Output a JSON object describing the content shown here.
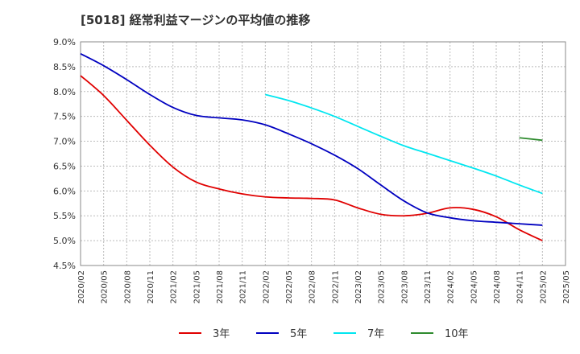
{
  "chart_data": {
    "type": "line",
    "title": "[5018]  経常利益マージンの平均値の推移",
    "xlabel": "",
    "ylabel": "",
    "ylim": [
      4.5,
      9.0
    ],
    "y_ticks": [
      "4.5%",
      "5.0%",
      "5.5%",
      "6.0%",
      "6.5%",
      "7.0%",
      "7.5%",
      "8.0%",
      "8.5%",
      "9.0%"
    ],
    "x_ticks": [
      "2020/02",
      "2020/05",
      "2020/08",
      "2020/11",
      "2021/02",
      "2021/05",
      "2021/08",
      "2021/11",
      "2022/02",
      "2022/05",
      "2022/08",
      "2022/11",
      "2023/02",
      "2023/05",
      "2023/08",
      "2023/11",
      "2024/02",
      "2024/05",
      "2024/08",
      "2024/11",
      "2025/02",
      "2025/05"
    ],
    "grid": true,
    "legend_position": "bottom",
    "series": [
      {
        "name": "3年",
        "color": "#e00000",
        "x": [
          "2020/02",
          "2020/05",
          "2020/08",
          "2020/11",
          "2021/02",
          "2021/05",
          "2021/08",
          "2021/11",
          "2022/02",
          "2022/05",
          "2022/08",
          "2022/11",
          "2023/02",
          "2023/05",
          "2023/08",
          "2023/11",
          "2024/02",
          "2024/05",
          "2024/08",
          "2024/11",
          "2025/02"
        ],
        "values": [
          8.32,
          7.92,
          7.42,
          6.92,
          6.48,
          6.18,
          6.04,
          5.94,
          5.88,
          5.86,
          5.85,
          5.82,
          5.66,
          5.53,
          5.5,
          5.55,
          5.66,
          5.63,
          5.48,
          5.22,
          5.0
        ]
      },
      {
        "name": "5年",
        "color": "#0000c0",
        "x": [
          "2020/02",
          "2020/05",
          "2020/08",
          "2020/11",
          "2021/02",
          "2021/05",
          "2021/08",
          "2021/11",
          "2022/02",
          "2022/05",
          "2022/08",
          "2022/11",
          "2023/02",
          "2023/05",
          "2023/08",
          "2023/11",
          "2024/02",
          "2024/05",
          "2024/08",
          "2024/11",
          "2025/02"
        ],
        "values": [
          8.76,
          8.52,
          8.24,
          7.94,
          7.68,
          7.52,
          7.47,
          7.43,
          7.33,
          7.15,
          6.95,
          6.72,
          6.45,
          6.12,
          5.8,
          5.56,
          5.46,
          5.4,
          5.37,
          5.34,
          5.31
        ]
      },
      {
        "name": "7年",
        "color": "#00e6f0",
        "x": [
          "2022/02",
          "2022/05",
          "2022/08",
          "2022/11",
          "2023/02",
          "2023/05",
          "2023/08",
          "2023/11",
          "2024/02",
          "2024/05",
          "2024/08",
          "2024/11",
          "2025/02"
        ],
        "values": [
          7.94,
          7.82,
          7.67,
          7.5,
          7.3,
          7.1,
          6.91,
          6.76,
          6.61,
          6.46,
          6.3,
          6.12,
          5.95
        ]
      },
      {
        "name": "10年",
        "color": "#2e8b2e",
        "x": [
          "2024/11",
          "2025/02"
        ],
        "values": [
          7.07,
          7.02
        ]
      }
    ]
  }
}
